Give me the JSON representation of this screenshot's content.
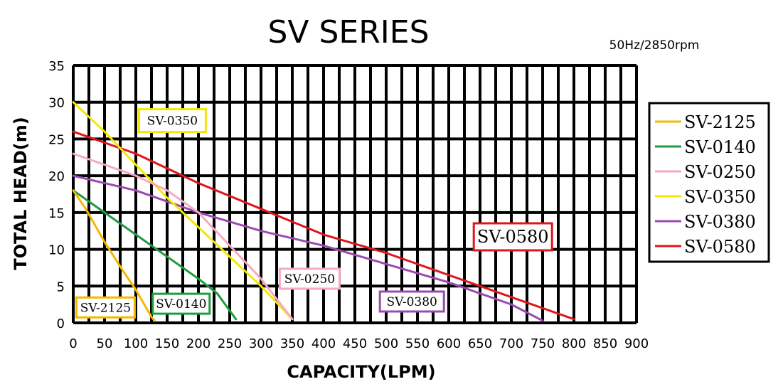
{
  "chart_data": {
    "type": "line",
    "title": "SV  SERIES",
    "subtitle": "50Hz/2850rpm",
    "xlabel": "CAPACITY(LPM)",
    "ylabel": "TOTAL HEAD(m)",
    "xlim": [
      0,
      900
    ],
    "ylim": [
      0,
      35
    ],
    "xticks": [
      0,
      50,
      100,
      150,
      200,
      250,
      300,
      350,
      400,
      450,
      500,
      550,
      600,
      650,
      700,
      750,
      800,
      850,
      900
    ],
    "yticks": [
      0,
      5,
      10,
      15,
      20,
      25,
      30,
      35
    ],
    "grid": true,
    "legend_position": "right",
    "series": [
      {
        "name": "SV-2125",
        "color": "#f5b800",
        "points": [
          [
            0,
            18
          ],
          [
            20,
            15.5
          ],
          [
            50,
            11
          ],
          [
            80,
            7
          ],
          [
            100,
            4.5
          ],
          [
            125,
            0.8
          ],
          [
            130,
            0.3
          ]
        ]
      },
      {
        "name": "SV-0140",
        "color": "#1f9a3e",
        "points": [
          [
            0,
            18
          ],
          [
            50,
            15
          ],
          [
            100,
            12
          ],
          [
            150,
            9
          ],
          [
            200,
            6
          ],
          [
            230,
            4
          ],
          [
            260,
            0.5
          ]
        ]
      },
      {
        "name": "SV-0250",
        "color": "#f7a8c4",
        "points": [
          [
            0,
            23
          ],
          [
            50,
            21.5
          ],
          [
            100,
            20
          ],
          [
            150,
            18
          ],
          [
            200,
            15
          ],
          [
            250,
            10.5
          ],
          [
            300,
            6
          ],
          [
            350,
            0.5
          ]
        ]
      },
      {
        "name": "SV-0350",
        "color": "#f5e800",
        "points": [
          [
            0,
            30
          ],
          [
            50,
            26
          ],
          [
            100,
            21.5
          ],
          [
            150,
            17
          ],
          [
            200,
            13
          ],
          [
            250,
            9
          ],
          [
            300,
            5
          ],
          [
            350,
            0.5
          ]
        ]
      },
      {
        "name": "SV-0380",
        "color": "#9a4ab0",
        "points": [
          [
            0,
            20
          ],
          [
            100,
            18
          ],
          [
            200,
            15
          ],
          [
            300,
            12.5
          ],
          [
            400,
            10.5
          ],
          [
            500,
            8
          ],
          [
            600,
            5.5
          ],
          [
            700,
            2.5
          ],
          [
            750,
            0.3
          ]
        ]
      },
      {
        "name": "SV-0580",
        "color": "#e0141c",
        "points": [
          [
            0,
            26
          ],
          [
            100,
            23
          ],
          [
            200,
            19
          ],
          [
            300,
            15.5
          ],
          [
            400,
            12
          ],
          [
            500,
            9.5
          ],
          [
            600,
            6.5
          ],
          [
            700,
            3.5
          ],
          [
            800,
            0.5
          ]
        ]
      }
    ],
    "annotations": [
      {
        "text": "SV-0350",
        "color": "#f5e800"
      },
      {
        "text": "SV-0580",
        "color": "#e0141c"
      },
      {
        "text": "SV-0250",
        "color": "#f7a8c4"
      },
      {
        "text": "SV-0380",
        "color": "#9a4ab0"
      },
      {
        "text": "SV-2125",
        "color": "#f5b800"
      },
      {
        "text": "SV-0140",
        "color": "#1f9a3e"
      }
    ]
  }
}
